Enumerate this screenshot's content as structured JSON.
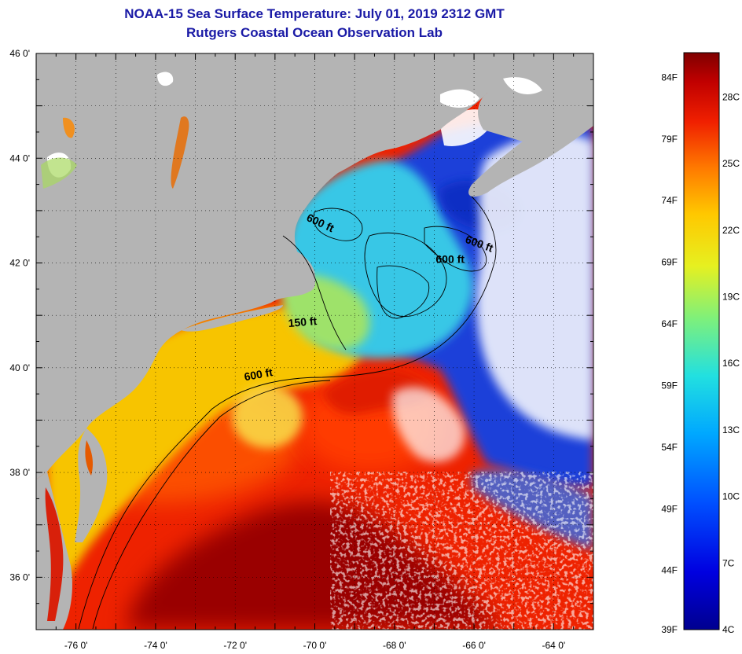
{
  "header": {
    "title": "NOAA-15 Sea Surface Temperature:  July 01, 2019 2312 GMT",
    "subtitle": "Rutgers Coastal Ocean Observation Lab"
  },
  "map": {
    "lon_range": [
      -77,
      -63
    ],
    "lat_range": [
      35,
      46
    ],
    "lon_ticks": [
      {
        "value": -76,
        "label": "-76 0'"
      },
      {
        "value": -74,
        "label": "-74 0'"
      },
      {
        "value": -72,
        "label": "-72 0'"
      },
      {
        "value": -70,
        "label": "-70 0'"
      },
      {
        "value": -68,
        "label": "-68 0'"
      },
      {
        "value": -66,
        "label": "-66 0'"
      },
      {
        "value": -64,
        "label": "-64 0'"
      }
    ],
    "lat_ticks": [
      {
        "value": 46,
        "label": "46 0'"
      },
      {
        "value": 44,
        "label": "44 0'"
      },
      {
        "value": 42,
        "label": "42 0'"
      },
      {
        "value": 40,
        "label": "40 0'"
      },
      {
        "value": 38,
        "label": "38 0'"
      },
      {
        "value": 36,
        "label": "36 0'"
      }
    ],
    "isobath_labels": [
      {
        "text": "600 ft",
        "lon": -69.9,
        "lat": 42.7
      },
      {
        "text": "600 ft",
        "lon": -65.9,
        "lat": 42.3
      },
      {
        "text": "600 ft",
        "lon": -66.6,
        "lat": 42.0
      },
      {
        "text": "150 ft",
        "lon": -70.3,
        "lat": 40.8
      },
      {
        "text": "600 ft",
        "lon": -71.4,
        "lat": 39.8
      }
    ],
    "colors": {
      "land": "#b4b4b4",
      "cloud": "#ffffff",
      "gulf_stream_core": "#9a0000",
      "warm": "#ee2200",
      "shelf": "#f7c400",
      "gulf_of_maine": "#38c7e6",
      "cold": "#1a3fd9"
    }
  },
  "colorbar": {
    "range_c": [
      4,
      30
    ],
    "fahrenheit_ticks": [
      "84F",
      "79F",
      "74F",
      "69F",
      "64F",
      "59F",
      "54F",
      "49F",
      "44F",
      "39F"
    ],
    "celsius_ticks": [
      "28C",
      "25C",
      "22C",
      "19C",
      "16C",
      "13C",
      "10C",
      "7C",
      "4C"
    ]
  }
}
